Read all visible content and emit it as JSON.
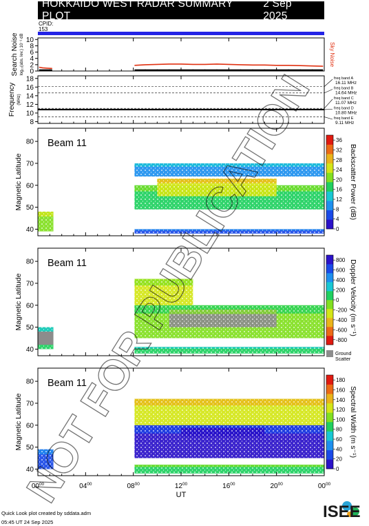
{
  "header": {
    "title": "HOKKAIDO WEST RADAR SUMMARY PLOT",
    "date": "2 Sep 2025"
  },
  "cpid": {
    "label": "CPID:",
    "value": "153"
  },
  "colors": {
    "cpid_bar": "#2323e6",
    "noise_line": "#e03010",
    "frequency_line": "#000000",
    "ground_scatter": "#8c8c8c",
    "watermark": "#000000"
  },
  "watermark": "NOT FOR PUBLICATION",
  "footer": {
    "credit": "Quick Look plot created by sddata.adm",
    "generated": "05:45 UT 24 Sep 2025",
    "logo_text": "ISEE"
  },
  "chart_data": [
    {
      "type": "line",
      "panel": "search-noise",
      "ylabel": "Search Noise",
      "ylabel_sub": "log₁₀(abs. lev.) 10⁻¹ dB",
      "side_label": "Sky Noise",
      "yticks": [
        0,
        2,
        4,
        6,
        8,
        10
      ],
      "ylim": [
        0,
        10.5
      ],
      "xlim": [
        0,
        24
      ],
      "series": [
        {
          "segment": 1,
          "x": [
            0.1,
            0.4,
            0.8,
            1.2
          ],
          "y": [
            1.2,
            1.0,
            0.9,
            0.8
          ]
        },
        {
          "segment": 2,
          "x": [
            8.1,
            9,
            10,
            11,
            12,
            13,
            14,
            15,
            16,
            17,
            18,
            19,
            20,
            21,
            22,
            23,
            23.9
          ],
          "y": [
            1.8,
            2.0,
            2.1,
            2.2,
            2.2,
            2.1,
            2.1,
            2.2,
            2.1,
            2.0,
            1.9,
            1.9,
            1.8,
            1.8,
            1.7,
            1.6,
            1.5
          ]
        }
      ]
    },
    {
      "type": "line",
      "panel": "frequency",
      "ylabel": "Frequency",
      "ylabel_sub": "(MHz)",
      "yticks": [
        8,
        10,
        12,
        14,
        16,
        18
      ],
      "ylim": [
        7.6,
        18.6
      ],
      "xlim": [
        0,
        24
      ],
      "bands": [
        {
          "label": "freq band A",
          "value": "16.11 MHz",
          "mhz": 16.11
        },
        {
          "label": "freq band B",
          "value": "14.64 MHz",
          "mhz": 14.64
        },
        {
          "label": "freq band C",
          "value": "11.07 MHz",
          "mhz": 11.07
        },
        {
          "label": "freq band D",
          "value": "10.80 MHz",
          "mhz": 10.8
        },
        {
          "label": "freq band E",
          "value": "9.11 MHz",
          "mhz": 9.11
        }
      ],
      "operating_mhz": 10.8
    },
    {
      "type": "heatmap",
      "panel": "power",
      "beam": "Beam 11",
      "ylabel": "Magnetic Latitude",
      "yticks": [
        40,
        50,
        60,
        70,
        80
      ],
      "ylim": [
        37,
        86
      ],
      "xlim": [
        0,
        24
      ],
      "colorbar_label": "Backscatter Power (dB)",
      "colorbar_ticks": [
        "0",
        "4",
        "8",
        "12",
        "16",
        "20",
        "24",
        "28",
        "32",
        "36"
      ],
      "colorbar_range": [
        0,
        38
      ],
      "colorscale": [
        "#2b12c9",
        "#1a4ae8",
        "#1e90ef",
        "#19c8d4",
        "#20d060",
        "#82e021",
        "#d4e617",
        "#eab41a",
        "#ec6a16",
        "#e01a10"
      ],
      "bands": [
        {
          "x0": 0,
          "x1": 1.3,
          "y0": 39,
          "y1": 48,
          "level": 5
        },
        {
          "x0": 8.1,
          "x1": 24,
          "y0": 49,
          "y1": 60,
          "level": 4
        },
        {
          "x0": 10,
          "x1": 20,
          "y0": 55,
          "y1": 63,
          "level": 6
        },
        {
          "x0": 8.1,
          "x1": 24,
          "y0": 38,
          "y1": 40,
          "level": 1
        },
        {
          "x0": 8.1,
          "x1": 24,
          "y0": 64,
          "y1": 70,
          "level": 2
        }
      ]
    },
    {
      "type": "heatmap",
      "panel": "velocity",
      "beam": "Beam 11",
      "ylabel": "Magnetic Latitude",
      "yticks": [
        40,
        50,
        60,
        70,
        80
      ],
      "ylim": [
        37,
        86
      ],
      "xlim": [
        0,
        24
      ],
      "colorbar_label": "Doppler Velocity (m s⁻¹)",
      "colorbar_ticks": [
        "-800",
        "-600",
        "-400",
        "-200",
        "0",
        "200",
        "400",
        "600",
        "800"
      ],
      "colorbar_range": [
        -900,
        900
      ],
      "colorscale": [
        "#e01a10",
        "#ec6a16",
        "#eab41a",
        "#d4e617",
        "#82e021",
        "#20d060",
        "#19c8d4",
        "#1e90ef",
        "#1a4ae8",
        "#2b12c9"
      ],
      "ground_scatter_label": "Ground Scatter",
      "bands": [
        {
          "x0": 0,
          "x1": 1.3,
          "y0": 40,
          "y1": 50,
          "level": 5
        },
        {
          "x0": 8.1,
          "x1": 24,
          "y0": 45,
          "y1": 60,
          "level": 4
        },
        {
          "x0": 11,
          "x1": 20,
          "y0": 50,
          "y1": 58,
          "level": -1
        },
        {
          "x0": 8.1,
          "x1": 24,
          "y0": 38,
          "y1": 41,
          "level": 5
        },
        {
          "x0": 8.1,
          "x1": 13,
          "y0": 60,
          "y1": 72,
          "level": 3
        }
      ]
    },
    {
      "type": "heatmap",
      "panel": "spectral-width",
      "beam": "Beam 11",
      "ylabel": "Magnetic Latitude",
      "yticks": [
        40,
        50,
        60,
        70,
        80
      ],
      "ylim": [
        37,
        86
      ],
      "xlim": [
        0,
        24
      ],
      "colorbar_label": "Spectral Width (m s⁻¹)",
      "colorbar_ticks": [
        "0",
        "20",
        "40",
        "60",
        "80",
        "100",
        "120",
        "140",
        "160",
        "180"
      ],
      "colorbar_range": [
        0,
        190
      ],
      "colorscale": [
        "#2b12c9",
        "#1a4ae8",
        "#1e90ef",
        "#19c8d4",
        "#20d060",
        "#82e021",
        "#d4e617",
        "#eab41a",
        "#ec6a16",
        "#e01a10"
      ],
      "bands": [
        {
          "x0": 0,
          "x1": 1.3,
          "y0": 40,
          "y1": 49,
          "level": 1
        },
        {
          "x0": 8.1,
          "x1": 24,
          "y0": 45,
          "y1": 60,
          "level": 0
        },
        {
          "x0": 12,
          "x1": 19,
          "y0": 55,
          "y1": 60,
          "level": 0
        },
        {
          "x0": 8.1,
          "x1": 24,
          "y0": 38,
          "y1": 42,
          "level": 4
        },
        {
          "x0": 8.1,
          "x1": 24,
          "y0": 60,
          "y1": 72,
          "level": 6
        }
      ]
    }
  ],
  "time_axis": {
    "label": "UT",
    "ticks": [
      {
        "h": "00",
        "m": "00"
      },
      {
        "h": "04",
        "m": "00"
      },
      {
        "h": "08",
        "m": "00"
      },
      {
        "h": "12",
        "m": "00"
      },
      {
        "h": "16",
        "m": "00"
      },
      {
        "h": "20",
        "m": "00"
      },
      {
        "h": "00",
        "m": "00"
      }
    ],
    "xlim": [
      0,
      24
    ]
  }
}
